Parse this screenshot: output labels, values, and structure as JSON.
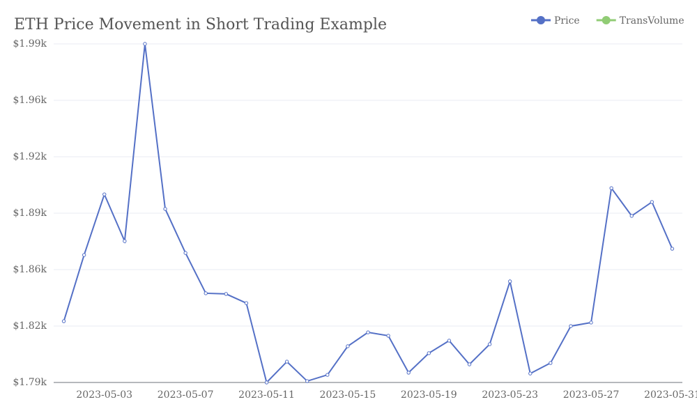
{
  "chart_data": {
    "type": "line",
    "title": "ETH Price Movement in Short Trading Example",
    "categories": [
      null,
      null,
      "2023-05-03",
      null,
      null,
      null,
      "2023-05-07",
      null,
      null,
      null,
      "2023-05-11",
      null,
      null,
      null,
      "2023-05-15",
      null,
      null,
      null,
      "2023-05-19",
      null,
      null,
      null,
      "2023-05-23",
      null,
      null,
      null,
      "2023-05-27",
      null,
      null,
      null,
      "2023-05-31"
    ],
    "series": [
      {
        "name": "Price",
        "color": "#5470c6",
        "values": [
          1826.2,
          1865.3,
          1901.1,
          1873.5,
          1990,
          1892.5,
          1866.5,
          1842.7,
          1842.3,
          1836.9,
          1790,
          1802.3,
          1790.8,
          1794.5,
          1811.4,
          1819.6,
          1817.6,
          1795.8,
          1807.3,
          1814.7,
          1800.7,
          1812.6,
          1849.7,
          1795.3,
          1801.5,
          1823.3,
          1825.4,
          1904.8,
          1888.4,
          1896.6,
          1869
        ]
      },
      {
        "name": "TransVolume",
        "color": "#91cc75",
        "values": [
          null,
          null,
          null,
          null,
          null,
          null,
          null,
          null,
          null,
          null,
          null,
          null,
          null,
          null,
          null,
          null,
          null,
          null,
          null,
          null,
          null,
          null,
          null,
          null,
          null,
          null,
          null,
          null,
          null,
          null,
          null
        ]
      }
    ],
    "ylim": [
      1790,
      1990
    ],
    "yticks": [
      {
        "value": 1790,
        "label": "$1.79k"
      },
      {
        "value": 1823.33,
        "label": "$1.82k"
      },
      {
        "value": 1856.67,
        "label": "$1.86k"
      },
      {
        "value": 1890,
        "label": "$1.89k"
      },
      {
        "value": 1923.33,
        "label": "$1.92k"
      },
      {
        "value": 1956.67,
        "label": "$1.96k"
      },
      {
        "value": 1990,
        "label": "$1.99k"
      }
    ],
    "grid": true,
    "legend": "top-right"
  }
}
